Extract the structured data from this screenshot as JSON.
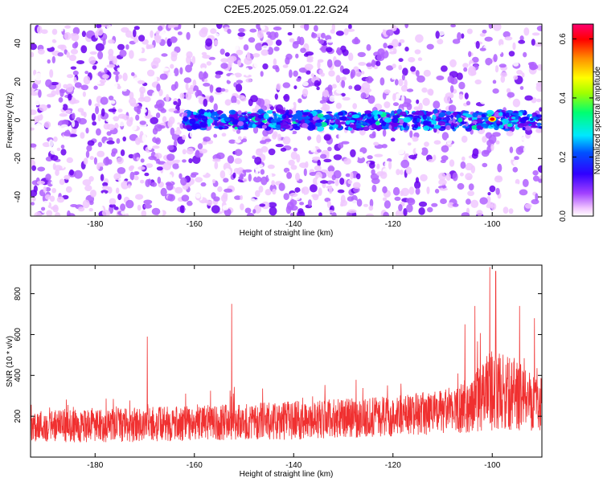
{
  "figure_title": "C2E5.2025.059.01.22.G24",
  "chart_data": [
    {
      "type": "heatmap",
      "title": "C2E5.2025.059.01.22.G24",
      "xlabel": "Height of straight line (km)",
      "ylabel": "Frequency (Hz)",
      "xlim": [
        -193,
        -90
      ],
      "ylim": [
        -50,
        50
      ],
      "x_ticks": [
        -180,
        -160,
        -140,
        -120,
        -100
      ],
      "y_ticks": [
        -40,
        -20,
        0,
        20,
        40
      ],
      "signal_band": {
        "frequency_hz": 0,
        "x_start": -162,
        "x_end": -90,
        "peak_x": -100,
        "peak_amplitude": 0.62
      },
      "colorbar": {
        "label": "Normalized spectral amplitude",
        "range": [
          0.0,
          0.65
        ],
        "ticks": [
          0.0,
          0.2,
          0.4,
          0.6
        ],
        "colors": [
          "#ffffff",
          "#ff00ff",
          "#8000ff",
          "#0000ff",
          "#00ffff",
          "#00ff00",
          "#ffff00",
          "#ff8000",
          "#ff0000",
          "#ff0066"
        ]
      }
    },
    {
      "type": "line",
      "xlabel": "Height of straight line (km)",
      "ylabel": "SNR (10 * v/v)",
      "xlim": [
        -193,
        -90
      ],
      "ylim": [
        0,
        940
      ],
      "x_ticks": [
        -180,
        -160,
        -140,
        -120,
        -100
      ],
      "y_ticks": [
        200,
        400,
        600,
        800
      ],
      "color": "#ff0000",
      "envelope": {
        "x": [
          -193,
          -180,
          -170,
          -160,
          -150,
          -140,
          -130,
          -120,
          -110,
          -105,
          -100,
          -95,
          -90
        ],
        "base": [
          155,
          150,
          160,
          165,
          175,
          180,
          190,
          200,
          220,
          245,
          330,
          300,
          280
        ],
        "spread": [
          80,
          80,
          85,
          85,
          90,
          95,
          95,
          100,
          110,
          125,
          200,
          170,
          150
        ]
      },
      "peaks": [
        {
          "x": -169.5,
          "y": 590
        },
        {
          "x": -152.5,
          "y": 750
        },
        {
          "x": -105.5,
          "y": 650
        },
        {
          "x": -103.5,
          "y": 740
        },
        {
          "x": -100.5,
          "y": 930
        },
        {
          "x": -99.3,
          "y": 910
        },
        {
          "x": -94.5,
          "y": 740
        },
        {
          "x": -91.5,
          "y": 680
        }
      ]
    }
  ]
}
